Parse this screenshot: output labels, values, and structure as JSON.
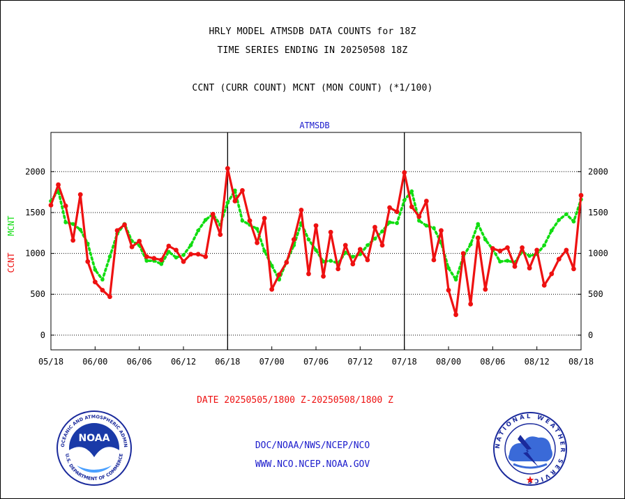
{
  "header": {
    "title_line1": "HRLY MODEL ATMSDB DATA COUNTS for 18Z",
    "title_line2": "TIME SERIES ENDING IN 20250508 18Z",
    "title_line3": "CCNT (CURR COUNT) MCNT (MON COUNT) (*1/100)"
  },
  "chart_data": {
    "type": "line",
    "title": "ATMSDB",
    "ylabel_left": "CCNT",
    "ylabel_right": "MCNT",
    "xlabel": "DATE 20250505/1800 Z-20250508/1800 Z",
    "ylim": [
      -180,
      2480
    ],
    "yticks": [
      0,
      500,
      1000,
      1500,
      2000
    ],
    "xlim": [
      0,
      72
    ],
    "xtick_positions": [
      0,
      6,
      12,
      18,
      24,
      30,
      36,
      42,
      48,
      54,
      60,
      66,
      72
    ],
    "xtick_labels": [
      "05/18",
      "06/00",
      "06/06",
      "06/12",
      "06/18",
      "07/00",
      "07/06",
      "07/12",
      "07/18",
      "08/00",
      "08/06",
      "08/12",
      "08/18"
    ],
    "day_boundaries": [
      24,
      48
    ],
    "grid": true,
    "colors": {
      "ccnt": "#ee1111",
      "mcnt": "#11dd11",
      "axis_label": "#1a1acc"
    },
    "series": [
      {
        "name": "CCNT",
        "values": [
          1590,
          1840,
          1580,
          1160,
          1720,
          900,
          650,
          550,
          470,
          1280,
          1350,
          1080,
          1150,
          960,
          940,
          920,
          1090,
          1040,
          900,
          990,
          990,
          960,
          1480,
          1230,
          2040,
          1640,
          1770,
          1400,
          1130,
          1430,
          560,
          740,
          890,
          1170,
          1530,
          750,
          1340,
          720,
          1260,
          810,
          1100,
          870,
          1050,
          920,
          1320,
          1100,
          1560,
          1510,
          1990,
          1570,
          1450,
          1640,
          920,
          1280,
          550,
          250,
          1000,
          380,
          1190,
          560,
          1060,
          1030,
          1070,
          840,
          1070,
          820,
          1040,
          610,
          750,
          930,
          1040,
          810,
          1710
        ]
      },
      {
        "name": "MCNT",
        "values": [
          1640,
          1770,
          1380,
          1360,
          1290,
          1120,
          800,
          680,
          960,
          1240,
          1360,
          1150,
          1100,
          910,
          910,
          870,
          1020,
          950,
          980,
          1100,
          1280,
          1410,
          1480,
          1350,
          1620,
          1770,
          1400,
          1350,
          1300,
          1030,
          850,
          680,
          900,
          1100,
          1370,
          1170,
          1040,
          900,
          910,
          880,
          1010,
          960,
          990,
          1100,
          1180,
          1270,
          1380,
          1370,
          1650,
          1760,
          1400,
          1340,
          1310,
          1130,
          820,
          680,
          960,
          1110,
          1360,
          1170,
          1050,
          900,
          910,
          890,
          1020,
          970,
          990,
          1100,
          1280,
          1410,
          1480,
          1390,
          1660
        ]
      }
    ]
  },
  "footer": {
    "agency": "DOC/NOAA/NWS/NCEP/NCO",
    "website": "WWW.NCO.NCEP.NOAA.GOV"
  },
  "logos": {
    "left": {
      "inner_text": "NOAA",
      "ring_top": "NATIONAL OCEANIC AND ATMOSPHERIC ADMINISTRATION",
      "ring_bottom": "U.S. DEPARTMENT OF COMMERCE"
    },
    "right": {
      "ring_text": "NATIONAL WEATHER SERVICE"
    }
  }
}
